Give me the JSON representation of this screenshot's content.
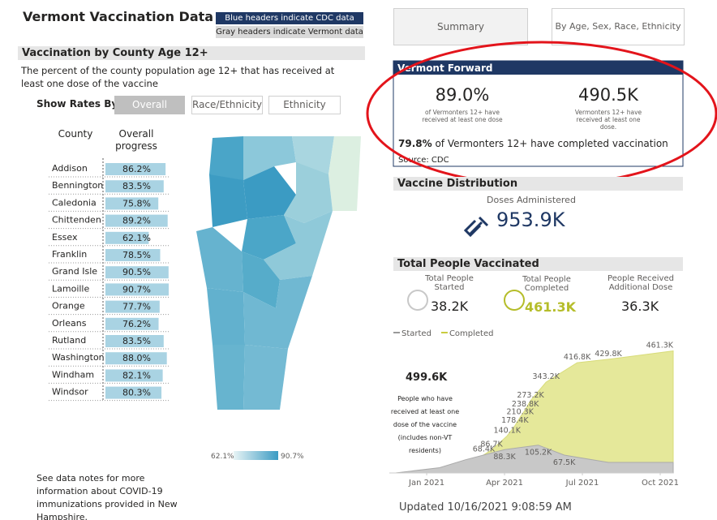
{
  "header": {
    "title": "Vermont Vaccination Data",
    "legend_blue": "Blue headers indicate CDC data",
    "legend_gray": "Gray headers indicate Vermont data"
  },
  "tabs": [
    "Summary",
    "By Age, Sex, Race, Ethnicity"
  ],
  "county_section": {
    "title": "Vaccination by County Age 12+",
    "description": "The percent of the county population age 12+ that has received at least one dose of the vaccine",
    "show_rates_label": "Show Rates By:",
    "buttons": [
      "Overall",
      "Race/Ethnicity",
      "Ethnicity"
    ],
    "columns": [
      "County",
      "Overall progress"
    ],
    "counties": [
      "Addison",
      "Bennington",
      "Caledonia",
      "Chittenden",
      "Essex",
      "Franklin",
      "Grand Isle",
      "Lamoille",
      "Orange",
      "Orleans",
      "Rutland",
      "Washington",
      "Windham",
      "Windsor"
    ],
    "values": [
      86.2,
      83.5,
      75.8,
      89.2,
      62.1,
      78.5,
      90.5,
      90.7,
      77.7,
      76.2,
      83.5,
      88.0,
      82.1,
      80.3
    ],
    "value_labels": [
      "86.2%",
      "83.5%",
      "75.8%",
      "89.2%",
      "62.1%",
      "78.5%",
      "90.5%",
      "90.7%",
      "77.7%",
      "76.2%",
      "83.5%",
      "88.0%",
      "82.1%",
      "80.3%"
    ],
    "bar_color": "#a9d3e3",
    "map_legend": {
      "min_label": "62.1%",
      "max_label": "90.7%"
    },
    "notes": "See data notes for more information about COVID-19 immunizations provided in New Hampshire."
  },
  "vermont_forward": {
    "title": "Vermont Forward",
    "stat1": {
      "value": "89.0%",
      "caption": "of Vermonters 12+ have received at least one dose"
    },
    "stat2": {
      "value": "490.5K",
      "caption": "Vermonters 12+ have received at least one dose."
    },
    "completed_pct": "79.8%",
    "completed_text": "of Vermonters 12+ have completed vaccination",
    "source": "Source: CDC"
  },
  "distribution": {
    "title": "Vaccine Distribution",
    "label": "Doses Administered",
    "value": "953.9K"
  },
  "people": {
    "title": "Total People Vaccinated",
    "cards": [
      {
        "label": "Total People Started",
        "value": "38.2K"
      },
      {
        "label": "Total People Completed",
        "value": "461.3K"
      },
      {
        "label": "People Received Additional Dose",
        "value": "36.3K"
      }
    ],
    "annotation_value": "499.6K",
    "annotation_text": "People who have received at least one dose of the vaccine (includes non-VT residents)",
    "chart": {
      "type": "area",
      "xlim": [
        -1.44,
        9.5
      ],
      "xticks": [
        {
          "value": 0,
          "label": "Jan 2021"
        },
        {
          "value": 3,
          "label": "Apr 2021"
        },
        {
          "value": 6,
          "label": "Jul 2021"
        },
        {
          "value": 9,
          "label": "Oct 2021"
        }
      ],
      "ylim": [
        0,
        500
      ],
      "series": [
        {
          "name": "Completed",
          "color": "#e5e89a",
          "x": [
            -1.2,
            0.5,
            1.5,
            2.2,
            2.5,
            3.1,
            3.4,
            3.6,
            3.8,
            4.0,
            4.6,
            5.8,
            7.0,
            9.5
          ],
          "values": [
            0,
            8,
            30,
            68.4,
            86.7,
            140.1,
            178.4,
            210.3,
            238.8,
            273.2,
            343.2,
            416.8,
            429.8,
            461.3
          ],
          "value_labels": [
            null,
            null,
            null,
            "68.4K",
            "86.7K",
            "140.1K",
            "178.4K",
            "210.3K",
            "238.8K",
            "273.2K",
            "343.2K",
            "416.8K",
            "429.8K",
            "461.3K"
          ]
        },
        {
          "name": "Started",
          "color": "#c8c8c8",
          "x": [
            -1.2,
            0.5,
            1.5,
            3.0,
            4.3,
            5.3,
            7.0,
            9.5
          ],
          "values": [
            0,
            20,
            50,
            88.3,
            105.2,
            67.5,
            40,
            40
          ],
          "value_labels": [
            null,
            null,
            null,
            "88.3K",
            "105.2K",
            "67.5K",
            null,
            null
          ]
        }
      ]
    }
  },
  "updated": "Updated 10/16/2021 9:08:59 AM"
}
